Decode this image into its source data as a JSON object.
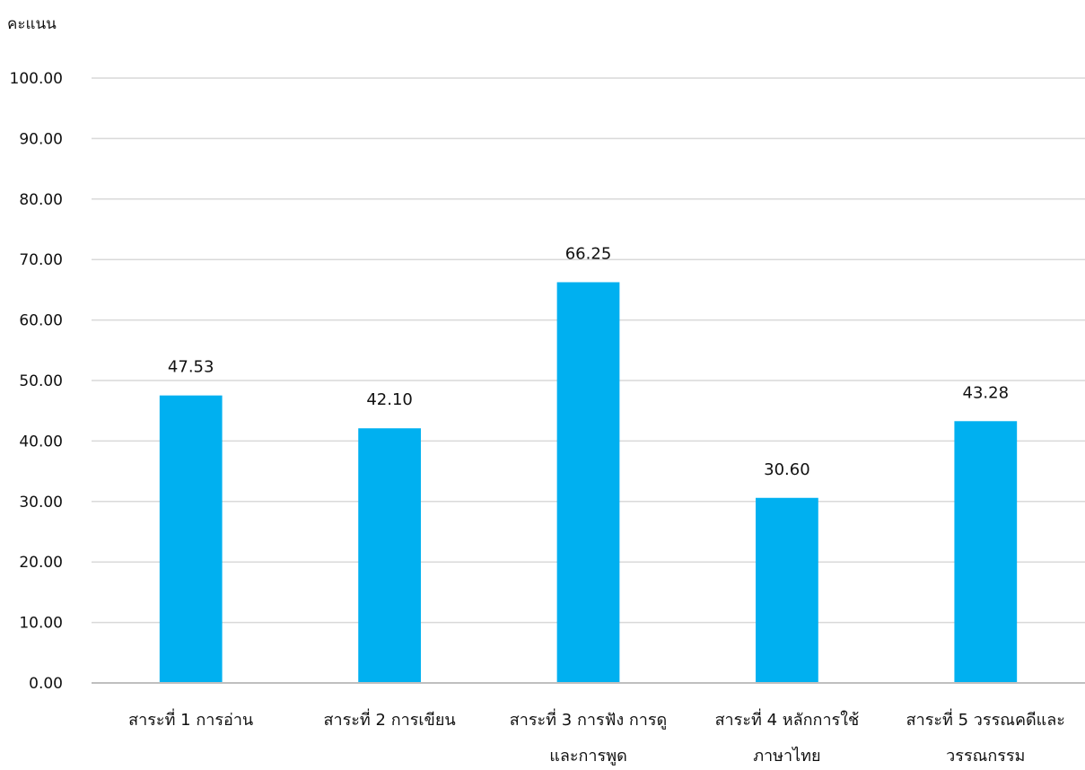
{
  "chart_data": {
    "type": "bar",
    "title": "",
    "ylabel": "คะแนน",
    "xlabel": "",
    "ylim": [
      0,
      100
    ],
    "yticks": [
      "0.00",
      "10.00",
      "20.00",
      "30.00",
      "40.00",
      "50.00",
      "60.00",
      "70.00",
      "80.00",
      "90.00",
      "100.00"
    ],
    "grid": true,
    "legend": "none",
    "categories": [
      [
        "สาระที่ 1 การอ่าน"
      ],
      [
        "สาระที่ 2 การเขียน"
      ],
      [
        "สาระที่ 3 การฟัง การดู",
        "และการพูด"
      ],
      [
        "สาระที่ 4 หลักการใช้",
        "ภาษาไทย"
      ],
      [
        "สาระที่ 5 วรรณคดีและ",
        "วรรณกรรม"
      ]
    ],
    "values": [
      47.53,
      42.1,
      66.25,
      30.6,
      43.28
    ],
    "data_labels": [
      "47.53",
      "42.10",
      "66.25",
      "30.60",
      "43.28"
    ],
    "colors": {
      "bar": "#00B0F0",
      "grid": "#D9D9D9",
      "axis": "#BFBFBF",
      "text": "#111111"
    }
  }
}
